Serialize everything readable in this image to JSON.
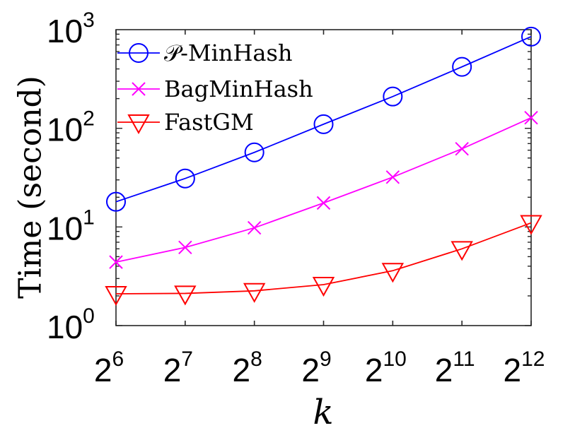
{
  "chart_data": {
    "type": "line",
    "xlabel": "k",
    "ylabel": "Time (second)",
    "x_tick_labels": [
      {
        "base": "2",
        "exp": "6"
      },
      {
        "base": "2",
        "exp": "7"
      },
      {
        "base": "2",
        "exp": "8"
      },
      {
        "base": "2",
        "exp": "9"
      },
      {
        "base": "2",
        "exp": "10"
      },
      {
        "base": "2",
        "exp": "11"
      },
      {
        "base": "2",
        "exp": "12"
      }
    ],
    "y_tick_labels": [
      {
        "base": "10",
        "exp": "0",
        "value": 1
      },
      {
        "base": "10",
        "exp": "1",
        "value": 10
      },
      {
        "base": "10",
        "exp": "2",
        "value": 100
      },
      {
        "base": "10",
        "exp": "3",
        "value": 1000
      }
    ],
    "x": [
      64,
      128,
      256,
      512,
      1024,
      2048,
      4096
    ],
    "x_scale": "log2",
    "y_scale": "log10",
    "ylim": [
      1,
      1000
    ],
    "legend_position": "top-left",
    "grid": false,
    "series": [
      {
        "name": "𝒫-MinHash",
        "color": "#0000ff",
        "marker": "circle",
        "values": [
          18,
          31,
          57,
          110,
          210,
          420,
          850
        ]
      },
      {
        "name": "BagMinHash",
        "color": "#ff00ff",
        "marker": "x",
        "values": [
          4.4,
          6.2,
          9.8,
          17.5,
          32,
          62,
          128
        ]
      },
      {
        "name": "FastGM",
        "color": "#ff0000",
        "marker": "triangle-down",
        "values": [
          2.1,
          2.12,
          2.25,
          2.6,
          3.6,
          6.0,
          11.0
        ]
      }
    ]
  }
}
